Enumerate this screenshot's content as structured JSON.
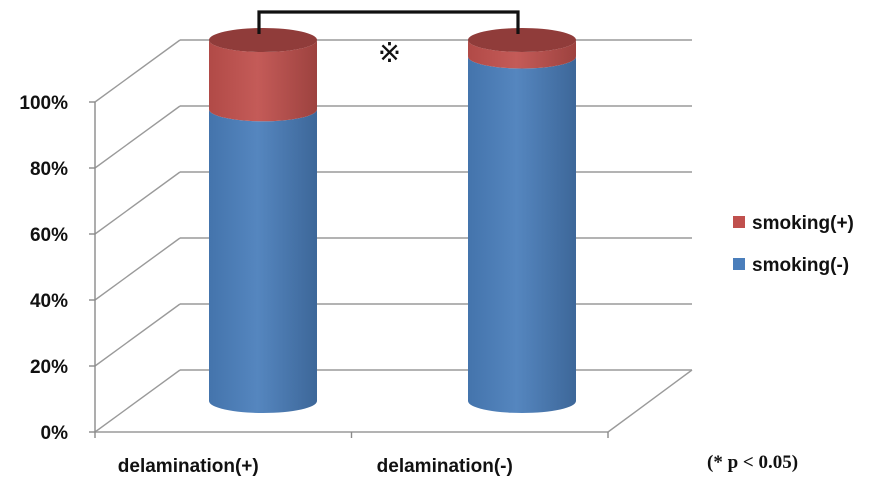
{
  "chart_data": {
    "type": "bar",
    "stacked": true,
    "style": "3d-cylinder",
    "categories": [
      "delamination(+)",
      "delamination(-)"
    ],
    "series": [
      {
        "name": "smoking(-)",
        "values": [
          79,
          95
        ],
        "color": "#4a7ebb"
      },
      {
        "name": "smoking(+)",
        "values": [
          21,
          5
        ],
        "color": "#c0504d"
      }
    ],
    "yticks": [
      "0%",
      "20%",
      "40%",
      "60%",
      "80%",
      "100%"
    ],
    "ylim": [
      0,
      100
    ],
    "grid": true,
    "legend": {
      "position": "right",
      "order": [
        "smoking(+)",
        "smoking(-)"
      ]
    },
    "annotations": {
      "significance_mark": "※",
      "significance_bracket": [
        "delamination(+)",
        "delamination(-)"
      ],
      "note": "(* p < 0.05)"
    }
  }
}
